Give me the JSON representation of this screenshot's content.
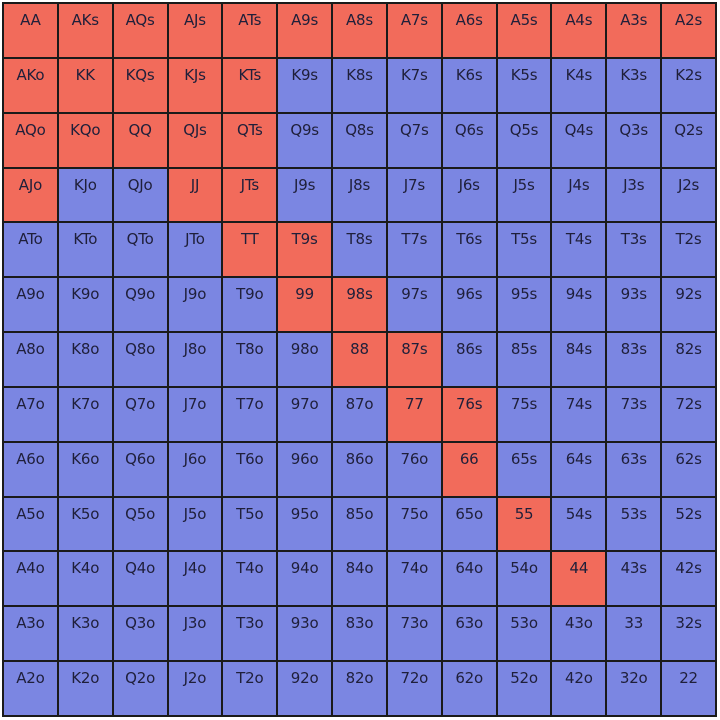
{
  "colors": {
    "raise": "#f26b5b",
    "fold": "#7b86e2"
  },
  "grid": [
    [
      "AA",
      "AKs",
      "AQs",
      "AJs",
      "ATs",
      "A9s",
      "A8s",
      "A7s",
      "A6s",
      "A5s",
      "A4s",
      "A3s",
      "A2s"
    ],
    [
      "AKo",
      "KK",
      "KQs",
      "KJs",
      "KTs",
      "K9s",
      "K8s",
      "K7s",
      "K6s",
      "K5s",
      "K4s",
      "K3s",
      "K2s"
    ],
    [
      "AQo",
      "KQo",
      "QQ",
      "QJs",
      "QTs",
      "Q9s",
      "Q8s",
      "Q7s",
      "Q6s",
      "Q5s",
      "Q4s",
      "Q3s",
      "Q2s"
    ],
    [
      "AJo",
      "KJo",
      "QJo",
      "JJ",
      "JTs",
      "J9s",
      "J8s",
      "J7s",
      "J6s",
      "J5s",
      "J4s",
      "J3s",
      "J2s"
    ],
    [
      "ATo",
      "KTo",
      "QTo",
      "JTo",
      "TT",
      "T9s",
      "T8s",
      "T7s",
      "T6s",
      "T5s",
      "T4s",
      "T3s",
      "T2s"
    ],
    [
      "A9o",
      "K9o",
      "Q9o",
      "J9o",
      "T9o",
      "99",
      "98s",
      "97s",
      "96s",
      "95s",
      "94s",
      "93s",
      "92s"
    ],
    [
      "A8o",
      "K8o",
      "Q8o",
      "J8o",
      "T8o",
      "98o",
      "88",
      "87s",
      "86s",
      "85s",
      "84s",
      "83s",
      "82s"
    ],
    [
      "A7o",
      "K7o",
      "Q7o",
      "J7o",
      "T7o",
      "97o",
      "87o",
      "77",
      "76s",
      "75s",
      "74s",
      "73s",
      "72s"
    ],
    [
      "A6o",
      "K6o",
      "Q6o",
      "J6o",
      "T6o",
      "96o",
      "86o",
      "76o",
      "66",
      "65s",
      "64s",
      "63s",
      "62s"
    ],
    [
      "A5o",
      "K5o",
      "Q5o",
      "J5o",
      "T5o",
      "95o",
      "85o",
      "75o",
      "65o",
      "55",
      "54s",
      "53s",
      "52s"
    ],
    [
      "A4o",
      "K4o",
      "Q4o",
      "J4o",
      "T4o",
      "94o",
      "84o",
      "74o",
      "64o",
      "54o",
      "44",
      "43s",
      "42s"
    ],
    [
      "A3o",
      "K3o",
      "Q3o",
      "J3o",
      "T3o",
      "93o",
      "83o",
      "73o",
      "63o",
      "53o",
      "43o",
      "33",
      "32s"
    ],
    [
      "A2o",
      "K2o",
      "Q2o",
      "J2o",
      "T2o",
      "92o",
      "82o",
      "72o",
      "62o",
      "52o",
      "42o",
      "32o",
      "22"
    ]
  ],
  "highlighted": [
    "AA",
    "AKs",
    "AQs",
    "AJs",
    "ATs",
    "A9s",
    "A8s",
    "A7s",
    "A6s",
    "A5s",
    "A4s",
    "A3s",
    "A2s",
    "AKo",
    "KK",
    "KQs",
    "KJs",
    "KTs",
    "AQo",
    "KQo",
    "QQ",
    "QJs",
    "QTs",
    "AJo",
    "JJ",
    "JTs",
    "TT",
    "T9s",
    "99",
    "98s",
    "88",
    "87s",
    "77",
    "76s",
    "66",
    "55",
    "44"
  ]
}
